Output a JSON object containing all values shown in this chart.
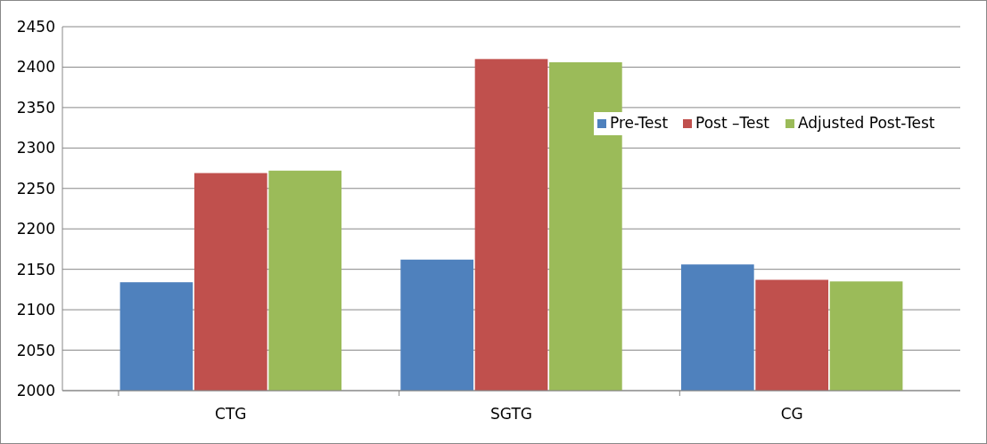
{
  "chart_data": {
    "type": "bar",
    "categories": [
      "CTG",
      "SGTG",
      "CG"
    ],
    "series": [
      {
        "name": "Pre-Test",
        "color": "#4f81bd",
        "values": [
          2134,
          2162,
          2156
        ]
      },
      {
        "name": "Post –Test",
        "color": "#c0504d",
        "values": [
          2269,
          2410,
          2137
        ]
      },
      {
        "name": "Adjusted Post-Test",
        "color": "#9bbb59",
        "values": [
          2272,
          2406,
          2135
        ]
      }
    ],
    "ylim": [
      2000,
      2450
    ],
    "yticks": [
      2000,
      2050,
      2100,
      2150,
      2200,
      2250,
      2300,
      2350,
      2400,
      2450
    ],
    "grid": "y",
    "legend": "top right"
  }
}
